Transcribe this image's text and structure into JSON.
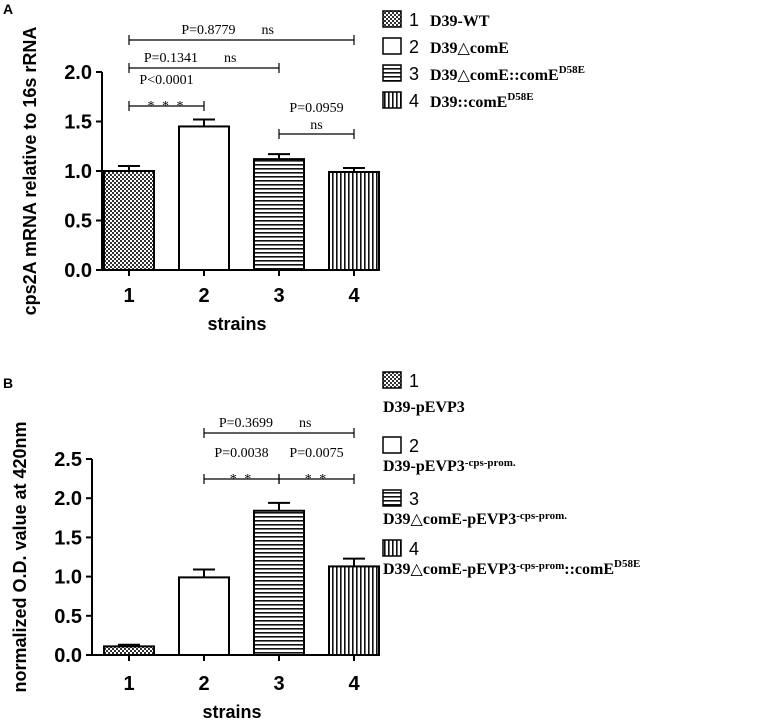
{
  "chart_data": [
    {
      "panel": "A",
      "type": "bar",
      "categories": [
        "1",
        "2",
        "3",
        "4"
      ],
      "values": [
        1.0,
        1.45,
        1.12,
        0.99
      ],
      "errors": [
        0.05,
        0.07,
        0.05,
        0.04
      ],
      "fills": [
        "checker",
        "white",
        "hlines",
        "vlines"
      ],
      "xlabel": "strains",
      "ylabel": "cps2A mRNA relative to 16s rRNA",
      "ylim": [
        0,
        2.0
      ],
      "yticks": [
        "0.0",
        "0.5",
        "1.0",
        "1.5",
        "2.0"
      ],
      "comparisons": [
        {
          "from": 1,
          "to": 2,
          "p": "P<0.0001",
          "sig": "* * *"
        },
        {
          "from": 1,
          "to": 3,
          "p": "P=0.1341",
          "sig": "ns"
        },
        {
          "from": 1,
          "to": 4,
          "p": "P=0.8779",
          "sig": "ns"
        },
        {
          "from": 3,
          "to": 4,
          "p": "P=0.0959",
          "sig": "ns"
        }
      ],
      "legend": [
        {
          "num": "1",
          "text": "D39-WT",
          "sup": ""
        },
        {
          "num": "2",
          "text": "D39△comE",
          "sup": ""
        },
        {
          "num": "3",
          "text": "D39△comE::comE",
          "sup": "D58E"
        },
        {
          "num": "4",
          "text": "D39::comE",
          "sup": "D58E"
        }
      ]
    },
    {
      "panel": "B",
      "type": "bar",
      "categories": [
        "1",
        "2",
        "3",
        "4"
      ],
      "values": [
        0.11,
        0.99,
        1.84,
        1.13
      ],
      "errors": [
        0.02,
        0.1,
        0.1,
        0.1
      ],
      "fills": [
        "checker",
        "white",
        "hlines",
        "vlines"
      ],
      "xlabel": "strains",
      "ylabel": "normalized O.D. value at 420nm",
      "ylim": [
        0,
        2.5
      ],
      "yticks": [
        "0.0",
        "0.5",
        "1.0",
        "1.5",
        "2.0",
        "2.5"
      ],
      "comparisons": [
        {
          "from": 2,
          "to": 3,
          "p": "P=0.0038",
          "sig": "* *"
        },
        {
          "from": 3,
          "to": 4,
          "p": "P=0.0075",
          "sig": "* *"
        },
        {
          "from": 2,
          "to": 4,
          "p": "P=0.3699",
          "sig": "ns"
        }
      ],
      "legend": [
        {
          "num": "1",
          "text": "D39-pEVP3",
          "small": "",
          "tail": "",
          "sup": ""
        },
        {
          "num": "2",
          "text": "D39-pEVP3",
          "small": "-cps-prom.",
          "tail": "",
          "sup": ""
        },
        {
          "num": "3",
          "text": "D39△comE-pEVP3",
          "small": "-cps-prom.",
          "tail": "",
          "sup": ""
        },
        {
          "num": "4",
          "text": "D39△comE-pEVP3",
          "small": "-cps-prom",
          "tail": "::comE",
          "sup": "D58E"
        }
      ]
    }
  ]
}
